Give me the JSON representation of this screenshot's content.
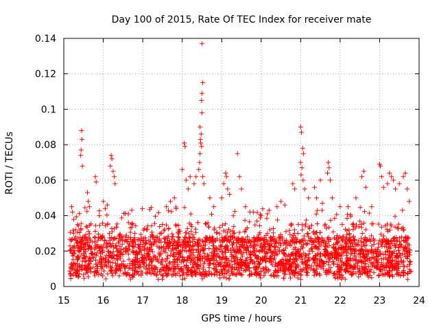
{
  "chart_data": {
    "type": "scatter",
    "title": "Day 100 of 2015, Rate Of TEC Index for receiver mate",
    "xlabel": "GPS time / hours",
    "ylabel": "ROTI / TECUs",
    "xlim": [
      15,
      24
    ],
    "ylim": [
      0,
      0.14
    ],
    "x_ticks": [
      15,
      16,
      17,
      18,
      19,
      20,
      21,
      22,
      23,
      24
    ],
    "x_tick_labels": [
      "15",
      "16",
      "17",
      "18",
      "19",
      "20",
      "21",
      "22",
      "23",
      "24"
    ],
    "y_ticks": [
      0,
      0.02,
      0.04,
      0.06,
      0.08,
      0.1,
      0.12,
      0.14
    ],
    "y_tick_labels": [
      "0",
      "0.02",
      "0.04",
      "0.06",
      "0.08",
      "0.1",
      "0.12",
      "0.14"
    ],
    "grid": true,
    "marker": "+",
    "series": [
      {
        "name": "ROTI",
        "color": "#ff0000",
        "points": [
          [
            15.2,
            0.045
          ],
          [
            15.22,
            0.042
          ],
          [
            15.25,
            0.03
          ],
          [
            15.3,
            0.028
          ],
          [
            15.35,
            0.035
          ],
          [
            15.45,
            0.088
          ],
          [
            15.46,
            0.083
          ],
          [
            15.44,
            0.077
          ],
          [
            15.43,
            0.074
          ],
          [
            15.47,
            0.068
          ],
          [
            15.6,
            0.053
          ],
          [
            15.62,
            0.048
          ],
          [
            15.65,
            0.045
          ],
          [
            15.8,
            0.062
          ],
          [
            15.82,
            0.059
          ],
          [
            15.9,
            0.04
          ],
          [
            16.0,
            0.048
          ],
          [
            16.05,
            0.044
          ],
          [
            16.1,
            0.046
          ],
          [
            16.2,
            0.074
          ],
          [
            16.22,
            0.072
          ],
          [
            16.18,
            0.068
          ],
          [
            16.25,
            0.065
          ],
          [
            16.28,
            0.062
          ],
          [
            16.3,
            0.058
          ],
          [
            16.5,
            0.028
          ],
          [
            16.8,
            0.03
          ],
          [
            17.2,
            0.028
          ],
          [
            17.5,
            0.035
          ],
          [
            17.6,
            0.045
          ],
          [
            17.7,
            0.048
          ],
          [
            17.8,
            0.05
          ],
          [
            18.0,
            0.066
          ],
          [
            18.05,
            0.081
          ],
          [
            18.07,
            0.079
          ],
          [
            18.1,
            0.06
          ],
          [
            18.15,
            0.055
          ],
          [
            18.2,
            0.062
          ],
          [
            18.3,
            0.058
          ],
          [
            18.35,
            0.062
          ],
          [
            18.5,
            0.137
          ],
          [
            18.52,
            0.115
          ],
          [
            18.5,
            0.109
          ],
          [
            18.49,
            0.105
          ],
          [
            18.5,
            0.098
          ],
          [
            18.45,
            0.09
          ],
          [
            18.48,
            0.086
          ],
          [
            18.46,
            0.083
          ],
          [
            18.47,
            0.081
          ],
          [
            18.49,
            0.079
          ],
          [
            18.45,
            0.075
          ],
          [
            18.44,
            0.07
          ],
          [
            18.42,
            0.066
          ],
          [
            18.52,
            0.062
          ],
          [
            18.55,
            0.058
          ],
          [
            18.7,
            0.05
          ],
          [
            18.8,
            0.045
          ],
          [
            19.0,
            0.05
          ],
          [
            19.1,
            0.064
          ],
          [
            19.12,
            0.062
          ],
          [
            19.05,
            0.058
          ],
          [
            19.15,
            0.055
          ],
          [
            19.2,
            0.052
          ],
          [
            19.4,
            0.075
          ],
          [
            19.45,
            0.062
          ],
          [
            19.5,
            0.055
          ],
          [
            19.6,
            0.045
          ],
          [
            19.8,
            0.042
          ],
          [
            20.0,
            0.04
          ],
          [
            20.2,
            0.043
          ],
          [
            20.4,
            0.045
          ],
          [
            20.5,
            0.048
          ],
          [
            20.6,
            0.046
          ],
          [
            20.8,
            0.058
          ],
          [
            20.85,
            0.055
          ],
          [
            21.0,
            0.09
          ],
          [
            21.02,
            0.087
          ],
          [
            21.05,
            0.078
          ],
          [
            21.07,
            0.075
          ],
          [
            21.0,
            0.07
          ],
          [
            21.03,
            0.067
          ],
          [
            21.01,
            0.063
          ],
          [
            21.06,
            0.06
          ],
          [
            21.1,
            0.055
          ],
          [
            21.2,
            0.05
          ],
          [
            21.35,
            0.056
          ],
          [
            21.4,
            0.05
          ],
          [
            21.5,
            0.06
          ],
          [
            21.55,
            0.047
          ],
          [
            21.7,
            0.07
          ],
          [
            21.72,
            0.067
          ],
          [
            21.68,
            0.064
          ],
          [
            21.75,
            0.06
          ],
          [
            21.8,
            0.05
          ],
          [
            22.0,
            0.045
          ],
          [
            22.2,
            0.045
          ],
          [
            22.4,
            0.05
          ],
          [
            22.55,
            0.062
          ],
          [
            22.6,
            0.065
          ],
          [
            22.65,
            0.056
          ],
          [
            22.8,
            0.045
          ],
          [
            23.0,
            0.069
          ],
          [
            23.02,
            0.068
          ],
          [
            23.05,
            0.062
          ],
          [
            23.1,
            0.056
          ],
          [
            23.2,
            0.058
          ],
          [
            23.25,
            0.064
          ],
          [
            23.3,
            0.062
          ],
          [
            23.35,
            0.06
          ],
          [
            23.4,
            0.055
          ],
          [
            23.5,
            0.058
          ],
          [
            23.6,
            0.062
          ],
          [
            23.65,
            0.064
          ],
          [
            23.7,
            0.055
          ],
          [
            23.75,
            0.048
          ]
        ]
      }
    ],
    "dense_band": {
      "x_range": [
        15.15,
        23.8
      ],
      "y_range": [
        0.003,
        0.04
      ],
      "note": "dense cloud of ROTI values, mostly between 0.005 and 0.035 TECUs"
    }
  }
}
